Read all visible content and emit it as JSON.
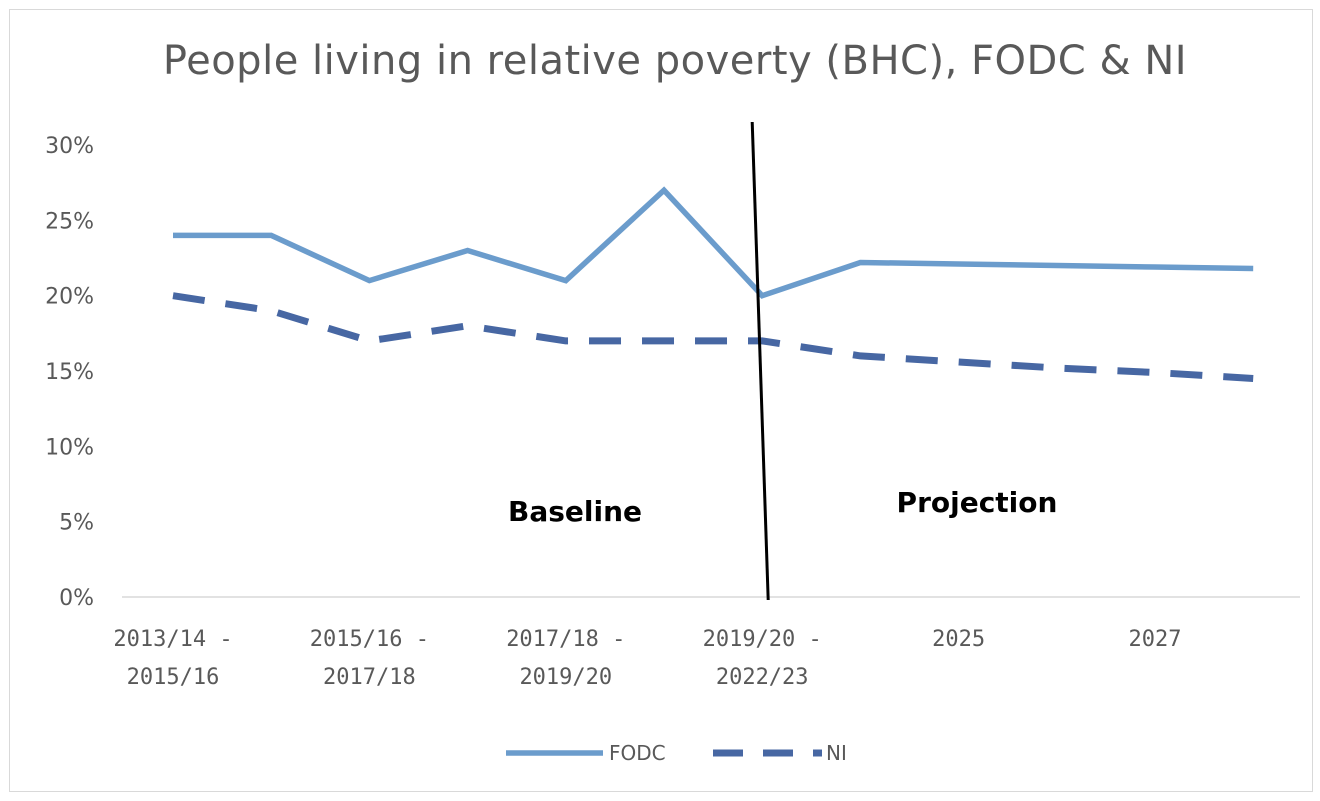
{
  "chart_data": {
    "type": "line",
    "title": "People living in relative poverty (BHC), FODC & NI",
    "xlabel": "",
    "ylabel": "",
    "ylim": [
      0,
      30
    ],
    "yticks": [
      "0%",
      "5%",
      "10%",
      "15%",
      "20%",
      "25%",
      "30%"
    ],
    "x_tick_labels": [
      {
        "index": 0,
        "lines": [
          "2013/14 -",
          "2015/16"
        ]
      },
      {
        "index": 2,
        "lines": [
          "2015/16 -",
          "2017/18"
        ]
      },
      {
        "index": 4,
        "lines": [
          "2017/18 -",
          "2019/20"
        ]
      },
      {
        "index": 6,
        "lines": [
          "2019/20 -",
          "2022/23"
        ]
      },
      {
        "index": 8,
        "lines": [
          "2025"
        ]
      },
      {
        "index": 10,
        "lines": [
          "2027"
        ]
      }
    ],
    "point_count": 12,
    "series": [
      {
        "name": "FODC",
        "color": "#6b9ccc",
        "style": "solid",
        "values": [
          24,
          24,
          21,
          23,
          21,
          27,
          20,
          22.2,
          22.1,
          22.0,
          21.9,
          21.8
        ]
      },
      {
        "name": "NI",
        "color": "#4767a3",
        "style": "dashed",
        "values": [
          20,
          19,
          17,
          18,
          17,
          17,
          17,
          16.0,
          15.6,
          15.2,
          14.9,
          14.5
        ]
      }
    ],
    "annotations": {
      "baseline_label": "Baseline",
      "projection_label": "Projection"
    },
    "divider_after_index": 6,
    "grid": false,
    "legend_position": "bottom"
  }
}
